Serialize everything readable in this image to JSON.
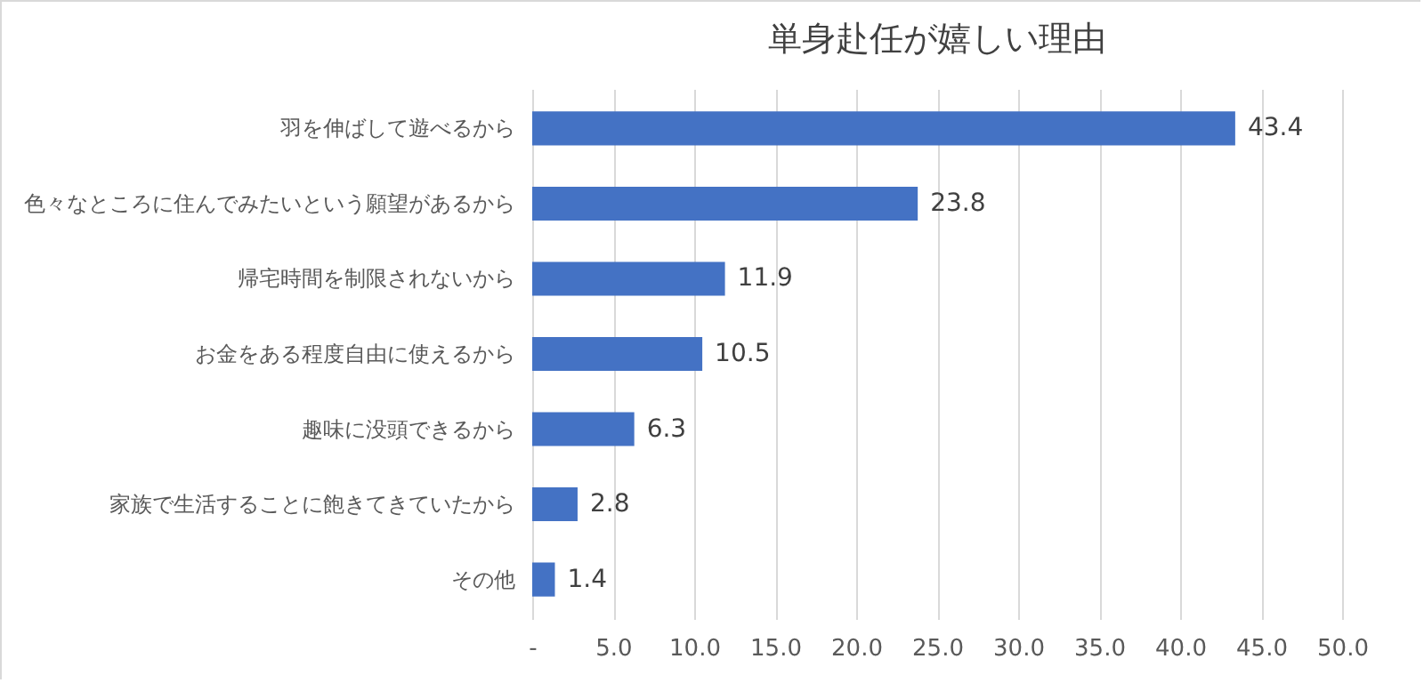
{
  "chart_data": {
    "type": "bar",
    "orientation": "horizontal",
    "title": "単身赴任が嬉しい理由",
    "categories": [
      "羽を伸ばして遊べるから",
      "色々なところに住んでみたいという願望があるから",
      "帰宅時間を制限されないから",
      "お金をある程度自由に使えるから",
      "趣味に没頭できるから",
      "家族で生活することに飽きてきていたから",
      "その他"
    ],
    "values": [
      43.4,
      23.8,
      11.9,
      10.5,
      6.3,
      2.8,
      1.4
    ],
    "color": "#4472c4",
    "xlim": [
      0,
      50
    ],
    "xticks": [
      {
        "value": 0,
        "label": "-"
      },
      {
        "value": 5,
        "label": "5.0"
      },
      {
        "value": 10,
        "label": "10.0"
      },
      {
        "value": 15,
        "label": "15.0"
      },
      {
        "value": 20,
        "label": "20.0"
      },
      {
        "value": 25,
        "label": "25.0"
      },
      {
        "value": 30,
        "label": "30.0"
      },
      {
        "value": 35,
        "label": "35.0"
      },
      {
        "value": 40,
        "label": "40.0"
      },
      {
        "value": 45,
        "label": "45.0"
      },
      {
        "value": 50,
        "label": "50.0"
      }
    ],
    "grid": "x",
    "data_labels": true
  }
}
